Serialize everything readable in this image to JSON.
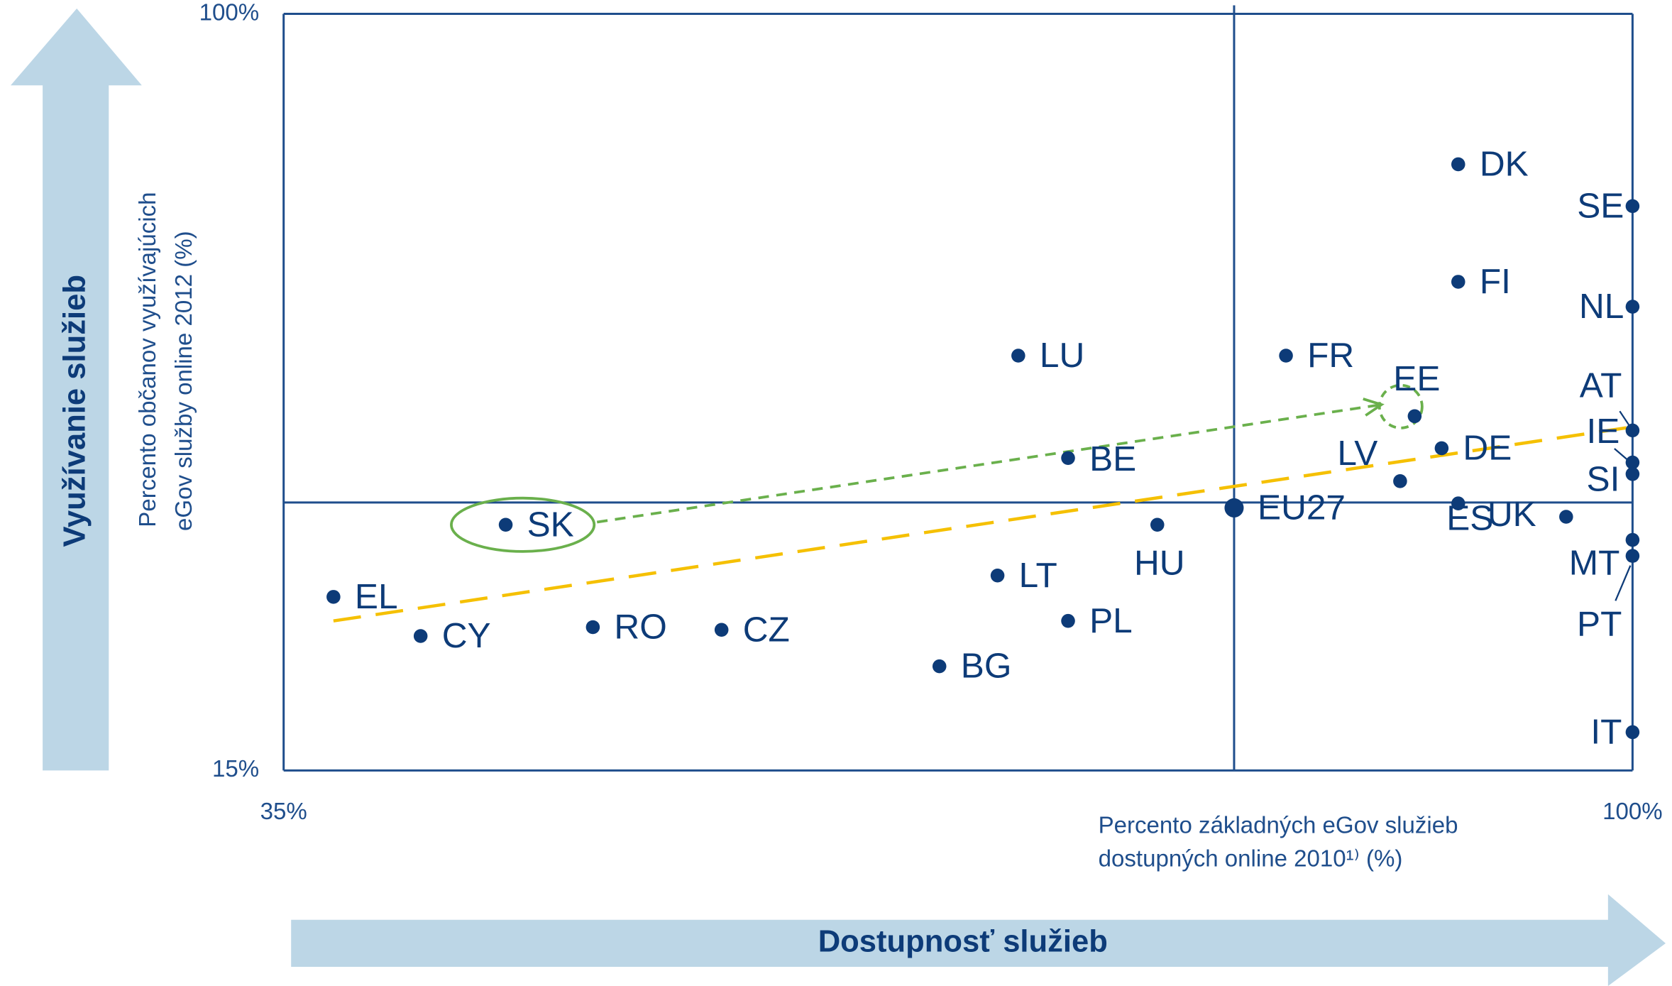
{
  "chart_data": {
    "type": "scatter",
    "x_label": [
      "Percento základných eGov služieb",
      "dostupných online 2010¹⁾ (%)"
    ],
    "y_label": [
      "Percento občanov využívajúcich",
      "eGov služby online 2012 (%)"
    ],
    "x_arrow_label": "Dostupnosť služieb",
    "y_arrow_label": "Využívanie služieb",
    "labels": [
      "DK",
      "SE",
      "FI",
      "NL",
      "LU",
      "FR",
      "EE",
      "AT",
      "IE",
      "SI",
      "DE",
      "LV",
      "BE",
      "EU27",
      "ES",
      "UK",
      "MT",
      "PT",
      "IT",
      "SK",
      "HU",
      "EL",
      "LT",
      "CY",
      "RO",
      "CZ",
      "PL",
      "BG"
    ],
    "x": [
      91.6,
      100,
      91.6,
      100,
      70.4,
      83.3,
      89.5,
      100,
      100,
      100,
      90.8,
      88.8,
      72.8,
      80.8,
      91.6,
      96.8,
      100,
      100,
      100,
      45.7,
      77.1,
      37.4,
      69.4,
      41.6,
      49.9,
      56.1,
      72.8,
      66.6
    ],
    "values": [
      83.1,
      78.4,
      69.9,
      67.1,
      61.6,
      61.6,
      54.8,
      53.2,
      49.6,
      48.3,
      51.2,
      47.5,
      50.1,
      44.5,
      45.0,
      43.5,
      40.9,
      39.1,
      19.3,
      42.6,
      42.6,
      34.5,
      36.9,
      30.1,
      31.1,
      30.8,
      31.8,
      26.7
    ],
    "color": "#0d3b78",
    "xlim": [
      35,
      100
    ],
    "ylim": [
      15,
      100
    ],
    "xticks": [
      {
        "value": 35,
        "label": "35%"
      },
      {
        "value": 100,
        "label": "100%"
      }
    ],
    "yticks": [
      {
        "value": 15,
        "label": "15%"
      },
      {
        "value": 100,
        "label": "100%"
      }
    ],
    "reference_lines": {
      "x": 80.8,
      "y": 45.1
    },
    "trend_line": {
      "x": [
        37.4,
        100
      ],
      "y": [
        31.8,
        53.6
      ],
      "color": "#f5c000"
    },
    "highlight_arrow": {
      "x": [
        50.1,
        87.9
      ],
      "y": [
        42.9,
        56.1
      ],
      "color": "#6ab04c"
    },
    "highlight": [
      "SK",
      "EE"
    ]
  }
}
